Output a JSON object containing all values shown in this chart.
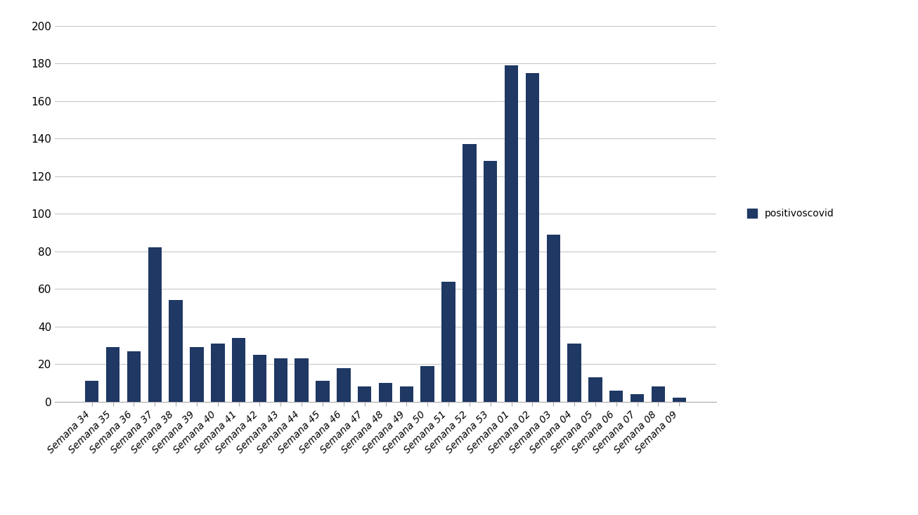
{
  "categories": [
    "Semana 34",
    "Semana 35",
    "Semana 36",
    "Semana 37",
    "Semana 38",
    "Semana 39",
    "Semana 40",
    "Semana 41",
    "Semana 42",
    "Semana 43",
    "Semana 44",
    "Semana 45",
    "Semana 46",
    "Semana 47",
    "Semana 48",
    "Semana 49",
    "Semana 50",
    "Semana 51",
    "Semana 52",
    "Semana 53",
    "Semana 01",
    "Semana 02",
    "Semana 03",
    "Semana 04",
    "Semana 05",
    "Semana 06",
    "Semana 07",
    "Semana 08",
    "Semana 09"
  ],
  "values": [
    11,
    29,
    27,
    82,
    54,
    29,
    31,
    34,
    25,
    23,
    23,
    11,
    18,
    8,
    10,
    8,
    19,
    64,
    137,
    128,
    179,
    175,
    89,
    31,
    13,
    6,
    4,
    8,
    2
  ],
  "bar_color": "#1F3864",
  "legend_label": "positivoscovid",
  "ylim": [
    0,
    200
  ],
  "yticks": [
    0,
    20,
    40,
    60,
    80,
    100,
    120,
    140,
    160,
    180,
    200
  ],
  "background_color": "#ffffff",
  "grid_color": "#c8c8c8",
  "tick_label_fontsize": 10,
  "ytick_fontsize": 11
}
